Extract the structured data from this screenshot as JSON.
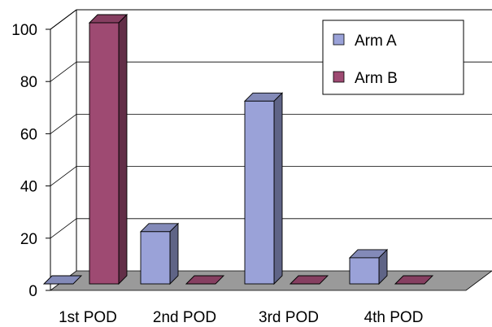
{
  "chart_data": {
    "type": "bar",
    "title": "",
    "xlabel": "",
    "ylabel": "",
    "categories": [
      "1st POD",
      "2nd POD",
      "3rd POD",
      "4th POD"
    ],
    "series": [
      {
        "name": "Arm A",
        "color": "#9aa2d8",
        "values": [
          0,
          20,
          70,
          10
        ]
      },
      {
        "name": "Arm B",
        "color": "#9e4a72",
        "values": [
          100,
          0,
          0,
          0
        ]
      }
    ],
    "ylim": [
      0,
      100
    ],
    "yticks": [
      "0",
      "20",
      "40",
      "60",
      "80",
      "100"
    ],
    "grid": true,
    "legend": "top-right",
    "style": "3d"
  }
}
